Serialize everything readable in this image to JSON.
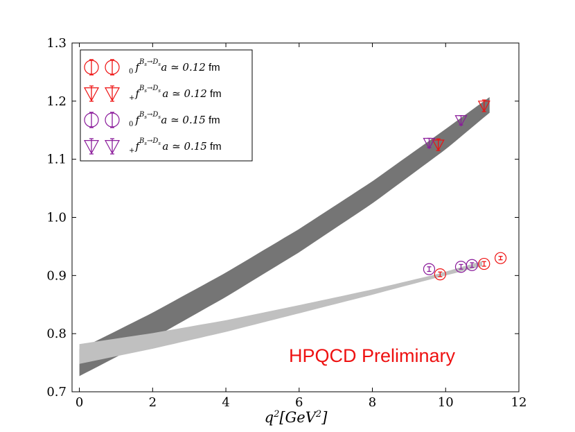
{
  "chart_data": {
    "type": "scatter",
    "title": "",
    "xlabel": "q²[GeV²]",
    "ylabel": "",
    "xlim": [
      -0.2,
      12
    ],
    "ylim": [
      0.7,
      1.3
    ],
    "x_ticks": [
      "0",
      "2",
      "4",
      "6",
      "8",
      "10",
      "12"
    ],
    "y_ticks": [
      "0.7",
      "0.8",
      "0.9",
      "1.0",
      "1.1",
      "1.2",
      "1.3"
    ],
    "grid": false,
    "legend_position": "top-left",
    "annotation": {
      "text": "HPQCD Preliminary",
      "color": "#ee1111"
    },
    "bands": [
      {
        "name": "f+ fit band",
        "color": "#757575",
        "x": [
          0.0,
          2.0,
          4.0,
          6.0,
          8.0,
          10.0,
          11.2
        ],
        "lower": [
          0.727,
          0.792,
          0.863,
          0.94,
          1.024,
          1.117,
          1.18
        ],
        "upper": [
          0.773,
          0.836,
          0.905,
          0.98,
          1.062,
          1.152,
          1.207
        ]
      },
      {
        "name": "f0 fit band",
        "color": "#c0c0c0",
        "x": [
          0.0,
          2.0,
          4.0,
          6.0,
          8.0,
          9.8,
          11.0
        ],
        "lower": [
          0.748,
          0.774,
          0.803,
          0.835,
          0.867,
          0.897,
          0.916
        ],
        "upper": [
          0.782,
          0.801,
          0.823,
          0.849,
          0.876,
          0.903,
          0.925
        ]
      }
    ],
    "series": [
      {
        "name": "f0 a≃0.12 fm",
        "marker": "circle",
        "color": "#ee1111",
        "points": [
          {
            "x": 9.85,
            "y": 0.902,
            "err": 0.004
          },
          {
            "x": 11.05,
            "y": 0.92,
            "err": 0.004
          },
          {
            "x": 11.5,
            "y": 0.93,
            "err": 0.003
          }
        ]
      },
      {
        "name": "f+ a≃0.12 fm",
        "marker": "triangle-down",
        "color": "#ee1111",
        "points": [
          {
            "x": 9.8,
            "y": 1.125,
            "err": 0.01
          },
          {
            "x": 11.05,
            "y": 1.192,
            "err": 0.01
          }
        ]
      },
      {
        "name": "f0 a≃0.15 fm",
        "marker": "circle",
        "color": "#8a1a9a",
        "points": [
          {
            "x": 9.55,
            "y": 0.911,
            "err": 0.004
          },
          {
            "x": 10.42,
            "y": 0.915,
            "err": 0.004
          },
          {
            "x": 10.72,
            "y": 0.918,
            "err": 0.004
          }
        ]
      },
      {
        "name": "f+ a≃0.15 fm",
        "marker": "triangle-down",
        "color": "#8a1a9a",
        "points": [
          {
            "x": 9.55,
            "y": 1.128,
            "err": 0.008
          },
          {
            "x": 10.42,
            "y": 1.167,
            "err": 0.008
          }
        ]
      }
    ],
    "legend": [
      {
        "label_f": "f",
        "sub": "0",
        "sup": "B",
        "sup2": "s",
        "sup3": "→D",
        "sup4": "s",
        "a_text": "a ≃ 0.12",
        "unit": "fm",
        "marker": "circle",
        "color": "#ee1111"
      },
      {
        "label_f": "f",
        "sub": "+",
        "sup": "B",
        "sup2": "s",
        "sup3": "→D",
        "sup4": "s",
        "a_text": "a ≃ 0.12",
        "unit": "fm",
        "marker": "triangle-down",
        "color": "#ee1111"
      },
      {
        "label_f": "f",
        "sub": "0",
        "sup": "B",
        "sup2": "s",
        "sup3": "→D",
        "sup4": "s",
        "a_text": "a ≃ 0.15",
        "unit": "fm",
        "marker": "circle",
        "color": "#8a1a9a"
      },
      {
        "label_f": "f",
        "sub": "+",
        "sup": "B",
        "sup2": "s",
        "sup3": "→D",
        "sup4": "s",
        "a_text": "a ≃ 0.15",
        "unit": "fm",
        "marker": "triangle-down",
        "color": "#8a1a9a"
      }
    ]
  }
}
